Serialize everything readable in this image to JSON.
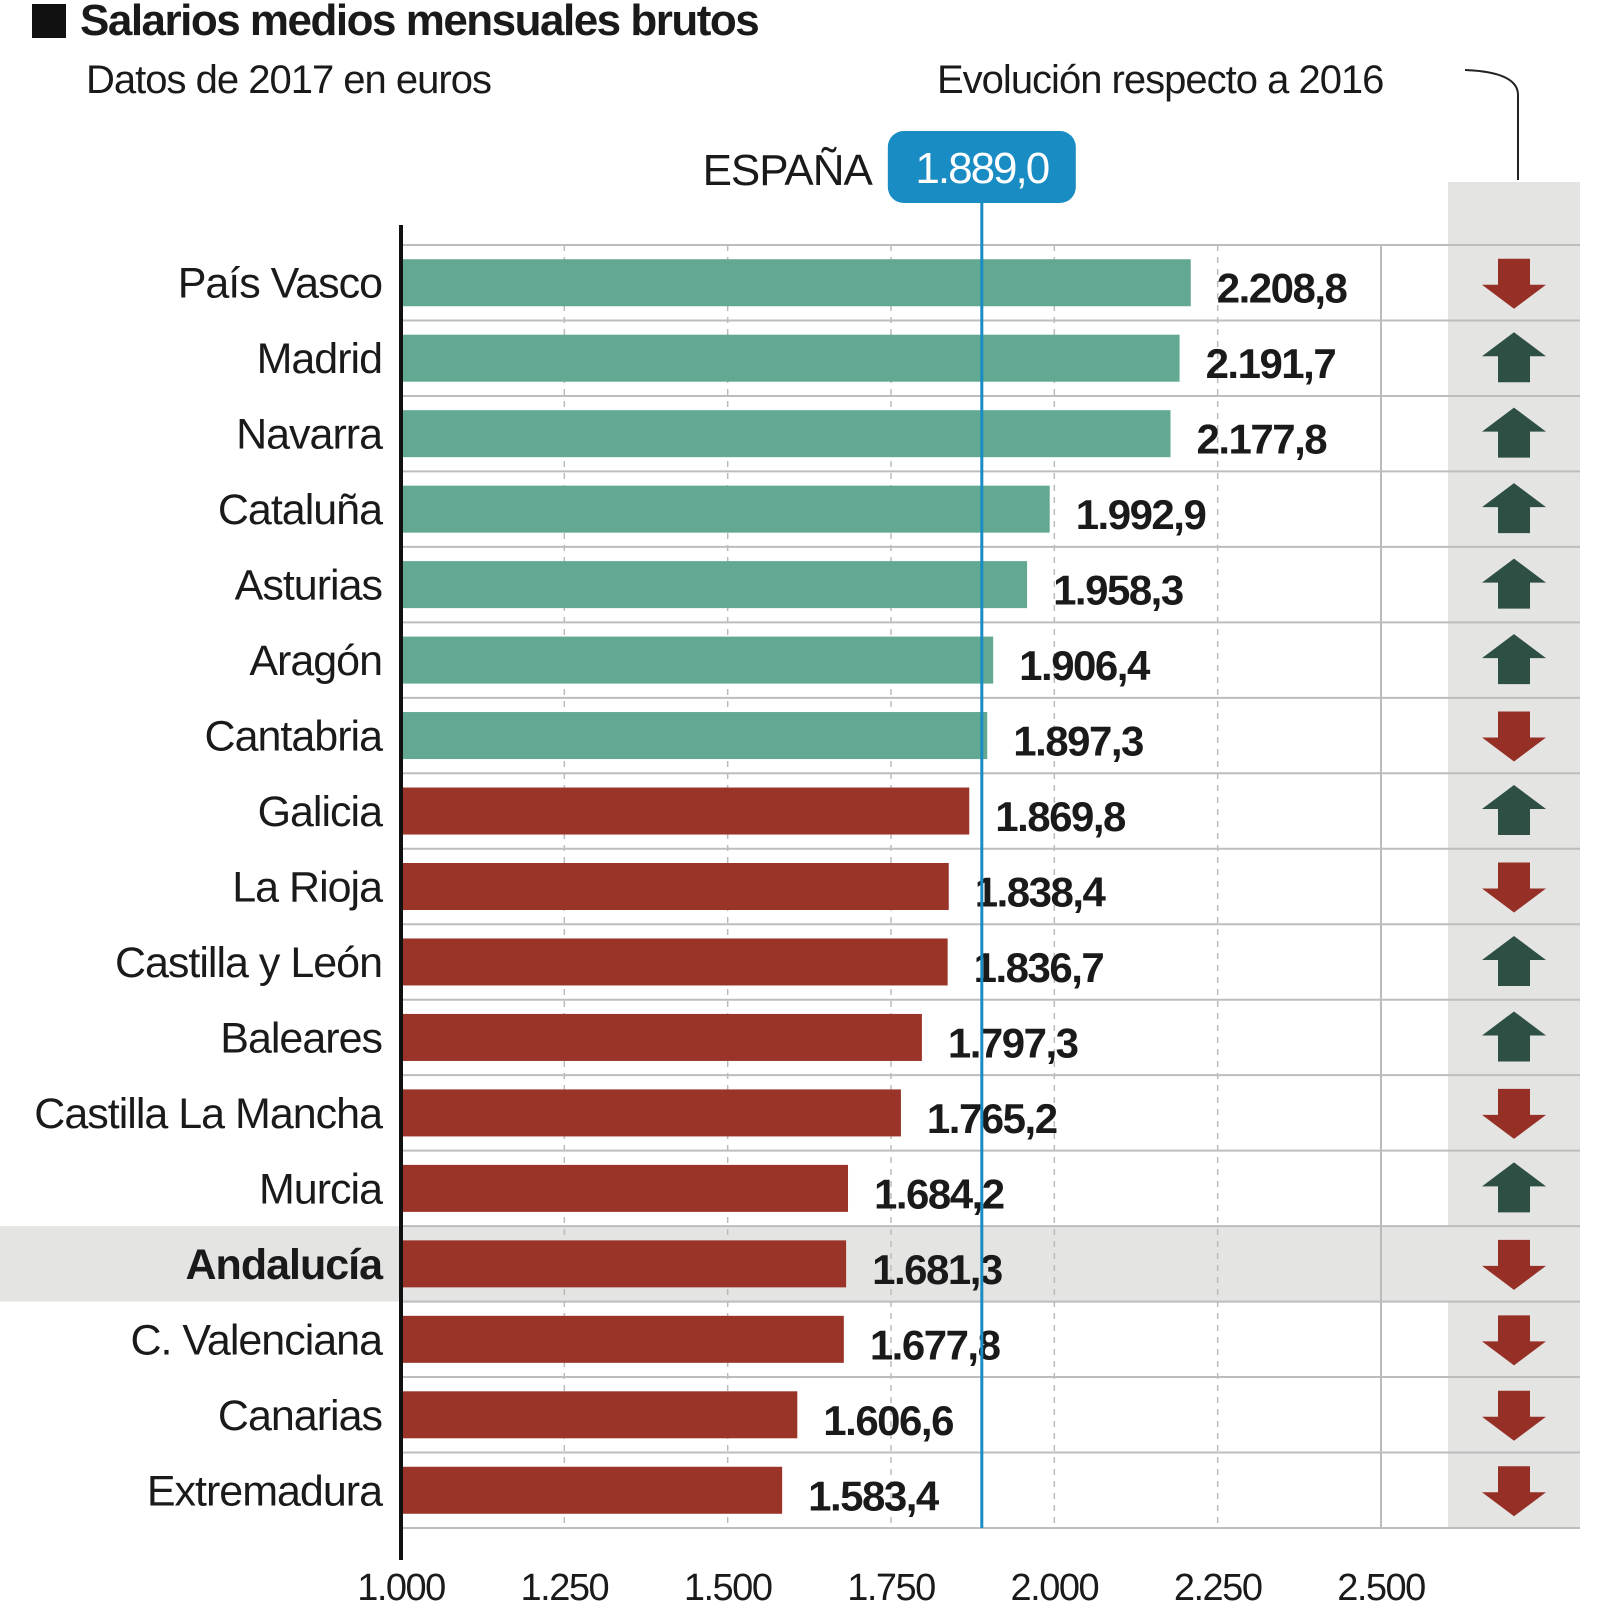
{
  "chart_data": {
    "type": "bar",
    "orientation": "horizontal",
    "title": "Salarios medios mensuales brutos",
    "subtitle": "Datos de 2017 en euros",
    "trend_header": "Evolución respecto a 2016",
    "reference": {
      "label": "ESPAÑA",
      "value": 1889.0,
      "value_label": "1.889,0",
      "color": "#1a8cc4"
    },
    "categories": [
      "País Vasco",
      "Madrid",
      "Navarra",
      "Cataluña",
      "Asturias",
      "Aragón",
      "Cantabria",
      "Galicia",
      "La Rioja",
      "Castilla y León",
      "Baleares",
      "Castilla La Mancha",
      "Murcia",
      "Andalucía",
      "C. Valenciana",
      "Canarias",
      "Extremadura"
    ],
    "values": [
      2208.8,
      2191.7,
      2177.8,
      1992.9,
      1958.3,
      1906.4,
      1897.3,
      1869.8,
      1838.4,
      1836.7,
      1797.3,
      1765.2,
      1684.2,
      1681.3,
      1677.8,
      1606.6,
      1583.4
    ],
    "value_labels": [
      "2.208,8",
      "2.191,7",
      "2.177,8",
      "1.992,9",
      "1.958,3",
      "1.906,4",
      "1.897,3",
      "1.869,8",
      "1.838,4",
      "1.836,7",
      "1.797,3",
      "1.765,2",
      "1.684,2",
      "1.681,3",
      "1.677,8",
      "1.606,6",
      "1.583,4"
    ],
    "trend": [
      "down",
      "up",
      "up",
      "up",
      "up",
      "up",
      "down",
      "up",
      "down",
      "up",
      "up",
      "down",
      "up",
      "down",
      "down",
      "down",
      "down"
    ],
    "highlight": "Andalucía",
    "xlim": [
      1000,
      2500
    ],
    "xticks": [
      1000,
      1250,
      1500,
      1750,
      2000,
      2250,
      2500
    ],
    "xtick_labels": [
      "1.000",
      "1.250",
      "1.500",
      "1.750",
      "2.000",
      "2.250",
      "2.500"
    ],
    "grid": true,
    "colors": {
      "above_average": "#62a893",
      "below_average": "#9a3328",
      "arrow_up": "#2d4f44",
      "arrow_down": "#963026",
      "highlight_row": "#e4e4e2",
      "trend_panel": "#e4e4e2"
    }
  }
}
